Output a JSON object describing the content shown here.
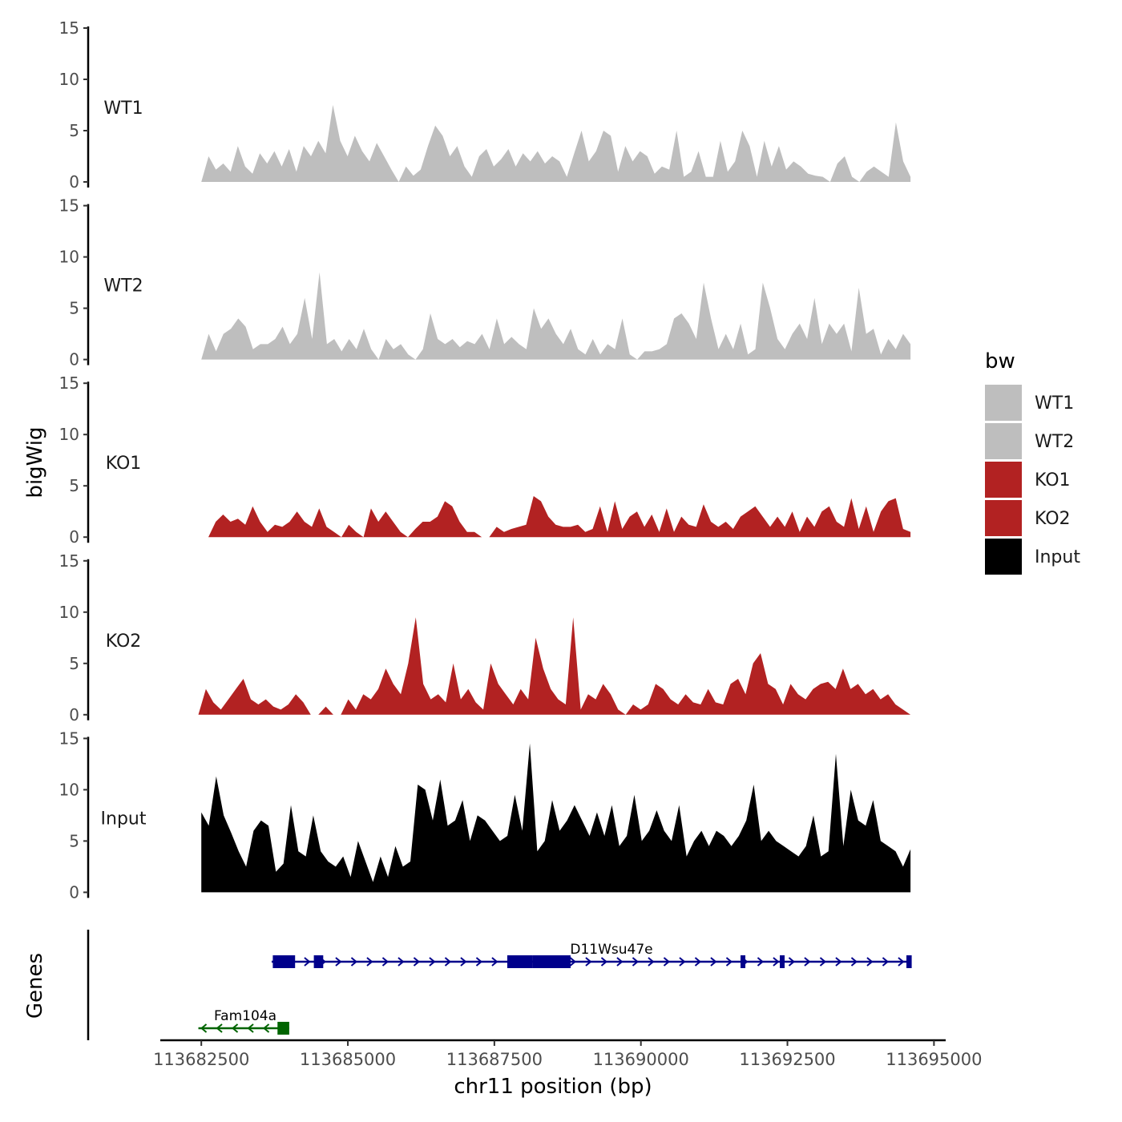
{
  "chart_data": {
    "type": "area",
    "ylabel": "bigWig",
    "xlabel": "chr11 position (bp)",
    "y_ticks": [
      0,
      5,
      10,
      15
    ],
    "x_ticks": [
      113682500,
      113685000,
      113687500,
      113690000,
      113692500,
      113695000
    ],
    "x_tick_labels": [
      "113682500",
      "113685000",
      "113687500",
      "113690000",
      "113692500",
      "113695000"
    ],
    "x_range": [
      113681800,
      113695200
    ],
    "y_range": [
      0,
      15
    ],
    "legend": {
      "title": "bw",
      "position": "right",
      "entries": [
        {
          "label": "WT1",
          "color": "#bebebe"
        },
        {
          "label": "WT2",
          "color": "#bebebe"
        },
        {
          "label": "KO1",
          "color": "#b22222"
        },
        {
          "label": "KO2",
          "color": "#b22222"
        },
        {
          "label": "Input",
          "color": "#000000"
        }
      ]
    },
    "series": [
      {
        "name": "WT1",
        "color": "#bebebe",
        "start": 113682500,
        "end": 113694600,
        "values": [
          0,
          2.5,
          1.2,
          1.8,
          1.0,
          3.5,
          1.5,
          0.8,
          2.8,
          1.8,
          3.0,
          1.5,
          3.2,
          1.0,
          3.5,
          2.5,
          4.0,
          2.8,
          7.5,
          4.0,
          2.5,
          4.5,
          3.0,
          2.0,
          3.8,
          2.5,
          1.2,
          0,
          1.5,
          0.6,
          1.2,
          3.5,
          5.5,
          4.5,
          2.5,
          3.5,
          1.5,
          0.5,
          2.5,
          3.2,
          1.5,
          2.2,
          3.2,
          1.5,
          2.8,
          2.0,
          3.0,
          1.8,
          2.5,
          2.0,
          0.5,
          2.8,
          5.0,
          2.0,
          3.0,
          5.0,
          4.5,
          1.0,
          3.5,
          2.0,
          3.0,
          2.5,
          0.8,
          1.5,
          1.2,
          5.0,
          0.5,
          1.0,
          3.0,
          0.5,
          0.5,
          4.0,
          1.0,
          2.0,
          5.0,
          3.5,
          0.5,
          4.0,
          1.5,
          3.5,
          1.2,
          2.0,
          1.5,
          0.8,
          0.6,
          0.5,
          0,
          1.8,
          2.5,
          0.5,
          0,
          1.0,
          1.5,
          1.0,
          0.5,
          5.8,
          2.0,
          0.5
        ]
      },
      {
        "name": "WT2",
        "color": "#bebebe",
        "start": 113682500,
        "end": 113694600,
        "values": [
          0,
          2.5,
          0.8,
          2.5,
          3.0,
          4.0,
          3.2,
          1.0,
          1.5,
          1.5,
          2.0,
          3.2,
          1.5,
          2.5,
          6.0,
          2.0,
          8.5,
          1.5,
          2.0,
          0.8,
          2.0,
          1.0,
          3.0,
          1.0,
          0,
          2.0,
          1.0,
          1.5,
          0.5,
          0,
          1.0,
          4.5,
          2.0,
          1.5,
          2.0,
          1.2,
          1.8,
          1.5,
          2.5,
          1.0,
          4.0,
          1.5,
          2.2,
          1.5,
          1.0,
          5.0,
          3.0,
          4.0,
          2.5,
          1.5,
          3.0,
          1.0,
          0.5,
          2.0,
          0.5,
          1.5,
          1.0,
          4.0,
          0.5,
          0,
          0.8,
          0.8,
          1.0,
          1.5,
          4.0,
          4.5,
          3.5,
          2.0,
          7.5,
          4.0,
          1.0,
          2.5,
          1.0,
          3.5,
          0.5,
          1.0,
          7.5,
          5.0,
          2.0,
          1.0,
          2.5,
          3.5,
          2.0,
          6.0,
          1.5,
          3.5,
          2.5,
          3.5,
          0.8,
          7.0,
          2.5,
          3.0,
          0.5,
          2.0,
          1.0,
          2.5,
          1.5
        ]
      },
      {
        "name": "KO1",
        "color": "#b22222",
        "start": 113682620,
        "end": 113694600,
        "values": [
          0,
          1.5,
          2.2,
          1.5,
          1.8,
          1.2,
          3.0,
          1.5,
          0.5,
          1.2,
          1.0,
          1.5,
          2.5,
          1.5,
          1.0,
          2.8,
          1.0,
          0.5,
          0,
          1.2,
          0.5,
          0,
          2.8,
          1.5,
          2.5,
          1.5,
          0.5,
          0,
          0.8,
          1.5,
          1.5,
          2.0,
          3.5,
          3.0,
          1.5,
          0.5,
          0.5,
          0,
          0,
          1.0,
          0.5,
          0.8,
          1.0,
          1.2,
          4.0,
          3.5,
          2.0,
          1.2,
          1.0,
          1.0,
          1.2,
          0.5,
          0.8,
          3.0,
          0.5,
          3.5,
          0.8,
          2.0,
          2.5,
          1.0,
          2.2,
          0.5,
          2.8,
          0.5,
          2.0,
          1.2,
          1.0,
          3.2,
          1.5,
          1.0,
          1.5,
          0.8,
          2.0,
          2.5,
          3.0,
          2.0,
          1.0,
          2.0,
          1.0,
          2.5,
          0.5,
          2.0,
          1.0,
          2.5,
          3.0,
          1.5,
          1.0,
          3.8,
          0.8,
          3.0,
          0.5,
          2.5,
          3.5,
          3.8,
          0.8,
          0.5
        ]
      },
      {
        "name": "KO2",
        "color": "#b22222",
        "start": 113682450,
        "end": 113694600,
        "values": [
          0,
          2.5,
          1.2,
          0.5,
          1.5,
          2.5,
          3.5,
          1.5,
          1.0,
          1.5,
          0.8,
          0.5,
          1.0,
          2.0,
          1.2,
          0,
          0,
          0.8,
          0,
          0,
          1.5,
          0.5,
          2.0,
          1.5,
          2.5,
          4.5,
          3.0,
          2.0,
          5.0,
          9.5,
          3.0,
          1.5,
          2.0,
          1.2,
          5.0,
          1.5,
          2.5,
          1.2,
          0.5,
          5.0,
          3.0,
          2.0,
          1.0,
          2.5,
          1.5,
          7.5,
          4.5,
          2.5,
          1.5,
          1.0,
          9.5,
          0.5,
          2.0,
          1.5,
          3.0,
          2.0,
          0.5,
          0,
          1.0,
          0.5,
          1.0,
          3.0,
          2.5,
          1.5,
          1.0,
          2.0,
          1.2,
          1.0,
          2.5,
          1.2,
          1.0,
          3.0,
          3.5,
          2.0,
          5.0,
          6.0,
          3.0,
          2.5,
          1.0,
          3.0,
          2.0,
          1.5,
          2.5,
          3.0,
          3.2,
          2.5,
          4.5,
          2.5,
          3.0,
          2.0,
          2.5,
          1.5,
          2.0,
          1.0,
          0.5,
          0
        ]
      },
      {
        "name": "Input",
        "color": "#000000",
        "start": 113682500,
        "end": 113694600,
        "values": [
          7.8,
          6.5,
          11.3,
          7.5,
          5.8,
          4.0,
          2.5,
          6.0,
          7.0,
          6.5,
          2.0,
          2.8,
          8.5,
          4.0,
          3.5,
          7.5,
          4.0,
          3.0,
          2.5,
          3.5,
          1.5,
          5.0,
          3.0,
          1.0,
          3.5,
          1.5,
          4.5,
          2.5,
          3.0,
          10.5,
          10.0,
          7.0,
          11.0,
          6.5,
          7.0,
          9.0,
          5.0,
          7.5,
          7.0,
          6.0,
          5.0,
          5.5,
          9.5,
          6.0,
          14.5,
          4.0,
          5.0,
          9.0,
          6.0,
          7.0,
          8.5,
          7.0,
          5.5,
          7.8,
          5.5,
          8.5,
          4.5,
          5.5,
          9.5,
          5.0,
          6.0,
          8.0,
          6.0,
          5.0,
          8.5,
          3.5,
          5.0,
          6.0,
          4.5,
          6.0,
          5.5,
          4.5,
          5.5,
          7.0,
          10.5,
          5.0,
          6.0,
          5.0,
          4.5,
          4.0,
          3.5,
          4.5,
          7.5,
          3.5,
          4.0,
          13.5,
          4.5,
          10.0,
          7.0,
          6.5,
          9.0,
          5.0,
          4.5,
          4.0,
          2.5,
          4.2
        ]
      }
    ],
    "genes": [
      {
        "name": "D11Wsu47e",
        "strand": "+",
        "color": "#00008b",
        "start": 113683700,
        "end": 113694600,
        "exons": [
          [
            113683720,
            113684100
          ],
          [
            113684420,
            113684580
          ],
          [
            113687720,
            113688150
          ],
          [
            113688150,
            113688800
          ],
          [
            113691700,
            113691780
          ],
          [
            113692370,
            113692450
          ],
          [
            113694530,
            113694620
          ]
        ]
      },
      {
        "name": "Fam104a",
        "strand": "-",
        "color": "#006400",
        "start": 113682450,
        "end": 113684000,
        "exons": [
          [
            113683800,
            113684000
          ]
        ]
      }
    ]
  }
}
